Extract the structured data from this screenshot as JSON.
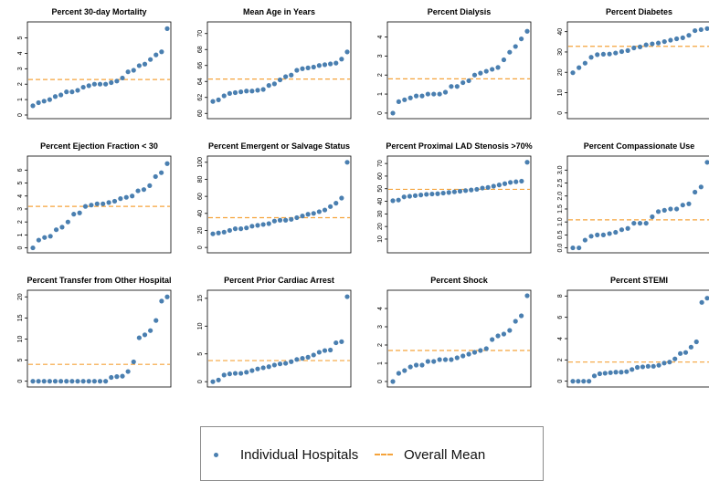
{
  "colors": {
    "points": "#4a7fb0",
    "mean_line": "#f5a33b",
    "frame": "#000000"
  },
  "legend": {
    "points_label": "Individual Hospitals",
    "mean_label": "Overall Mean"
  },
  "chart_data": [
    {
      "type": "scatter",
      "title": "Percent 30-day Mortality",
      "ylim": [
        0,
        5.8
      ],
      "ticks": [
        "0",
        "1",
        "2",
        "3",
        "4",
        "5"
      ],
      "tick_values": [
        0,
        1,
        2,
        3,
        4,
        5
      ],
      "mean": 2.3,
      "values": [
        0.6,
        0.8,
        0.9,
        1.0,
        1.2,
        1.3,
        1.5,
        1.5,
        1.6,
        1.8,
        1.9,
        2.0,
        2.0,
        2.0,
        2.1,
        2.2,
        2.4,
        2.8,
        2.9,
        3.2,
        3.3,
        3.6,
        3.9,
        4.1,
        5.6
      ]
    },
    {
      "type": "scatter",
      "title": "Mean Age in Years",
      "ylim": [
        59.8,
        71
      ],
      "ticks": [
        "60",
        "62",
        "64",
        "66",
        "68",
        "70"
      ],
      "tick_values": [
        60,
        62,
        64,
        66,
        68,
        70
      ],
      "mean": 64.3,
      "values": [
        61.5,
        61.7,
        62.2,
        62.5,
        62.6,
        62.7,
        62.8,
        62.8,
        62.9,
        63.0,
        63.5,
        63.7,
        64.2,
        64.6,
        64.8,
        65.4,
        65.6,
        65.7,
        65.8,
        66.0,
        66.1,
        66.2,
        66.3,
        66.8,
        67.7
      ]
    },
    {
      "type": "scatter",
      "title": "Percent Dialysis",
      "ylim": [
        -0.1,
        4.6
      ],
      "ticks": [
        "0",
        "1",
        "2",
        "3",
        "4"
      ],
      "tick_values": [
        0,
        1,
        2,
        3,
        4
      ],
      "mean": 1.8,
      "values": [
        0.0,
        0.6,
        0.7,
        0.8,
        0.9,
        0.9,
        1.0,
        1.0,
        1.0,
        1.1,
        1.4,
        1.4,
        1.6,
        1.7,
        2.0,
        2.1,
        2.2,
        2.3,
        2.4,
        2.8,
        3.2,
        3.5,
        3.9,
        4.3
      ]
    },
    {
      "type": "scatter",
      "title": "Percent Diabetes",
      "ylim": [
        -1,
        43
      ],
      "ticks": [
        "0",
        "10",
        "20",
        "30",
        "40"
      ],
      "tick_values": [
        0,
        10,
        20,
        30,
        40
      ],
      "mean": 32.8,
      "values": [
        19.8,
        22.3,
        24.5,
        27.4,
        28.7,
        28.9,
        29.0,
        29.5,
        30.2,
        30.7,
        32.0,
        32.5,
        33.5,
        34.0,
        34.4,
        35.1,
        35.8,
        36.5,
        37.0,
        38.2,
        40.5,
        41.0,
        41.5
      ]
    },
    {
      "type": "scatter",
      "title": "Percent Ejection Fraction < 30",
      "ylim": [
        -0.1,
        6.8
      ],
      "ticks": [
        "0",
        "1",
        "2",
        "3",
        "4",
        "5",
        "6"
      ],
      "tick_values": [
        0,
        1,
        2,
        3,
        4,
        5,
        6
      ],
      "mean": 3.2,
      "values": [
        0.0,
        0.6,
        0.8,
        0.9,
        1.4,
        1.6,
        2.0,
        2.6,
        2.7,
        3.2,
        3.3,
        3.4,
        3.4,
        3.5,
        3.6,
        3.8,
        3.9,
        4.0,
        4.4,
        4.5,
        4.8,
        5.5,
        5.8,
        6.5
      ]
    },
    {
      "type": "scatter",
      "title": "Percent Emergent or Salvage Status",
      "ylim": [
        -2,
        103
      ],
      "ticks": [
        "0",
        "20",
        "40",
        "60",
        "80",
        "100"
      ],
      "tick_values": [
        0,
        20,
        40,
        60,
        80,
        100
      ],
      "mean": 35,
      "values": [
        16,
        17,
        18,
        20,
        22,
        22,
        23,
        25,
        26,
        27,
        28,
        31,
        32,
        32,
        33,
        35,
        37,
        39,
        40,
        42,
        44,
        48,
        52,
        58,
        100
      ]
    },
    {
      "type": "scatter",
      "title": "Percent Proximal LAD Stenosis >70%",
      "ylim": [
        2,
        73
      ],
      "ticks": [
        "10",
        "20",
        "30",
        "40",
        "50",
        "60",
        "70"
      ],
      "tick_values": [
        10,
        20,
        30,
        40,
        50,
        60,
        70
      ],
      "mean": 49.5,
      "values": [
        40.5,
        41.0,
        43.5,
        44.0,
        44.5,
        45.0,
        45.5,
        45.8,
        46.0,
        46.5,
        47.0,
        47.5,
        48.0,
        48.5,
        49.0,
        49.5,
        50.5,
        51.0,
        52.0,
        53.0,
        54.0,
        55.0,
        55.5,
        56.0,
        71.0
      ]
    },
    {
      "type": "scatter",
      "title": "Percent Compassionate Use",
      "ylim": [
        -0.05,
        3.4
      ],
      "ticks": [
        "0.0",
        "0.5",
        "1.0",
        "1.5",
        "2.0",
        "2.5",
        "3.0"
      ],
      "tick_values": [
        0,
        0.5,
        1,
        1.5,
        2,
        2.5,
        3
      ],
      "mean": 1.08,
      "values": [
        0.0,
        0.0,
        0.3,
        0.45,
        0.5,
        0.5,
        0.55,
        0.6,
        0.7,
        0.75,
        0.95,
        0.95,
        0.95,
        1.2,
        1.4,
        1.45,
        1.5,
        1.5,
        1.65,
        1.7,
        2.15,
        2.35,
        3.3
      ]
    },
    {
      "type": "scatter",
      "title": "Percent Transfer from Other Hospital",
      "ylim": [
        -0.5,
        20.7
      ],
      "ticks": [
        "0",
        "5",
        "10",
        "15",
        "20"
      ],
      "tick_values": [
        0,
        5,
        10,
        15,
        20
      ],
      "mean": 4.0,
      "values": [
        0,
        0,
        0,
        0,
        0,
        0,
        0,
        0,
        0,
        0,
        0,
        0,
        0,
        0,
        0.9,
        1.1,
        1.2,
        2.3,
        4.6,
        10.3,
        11.0,
        12.0,
        14.4,
        19.0,
        20.0
      ]
    },
    {
      "type": "scatter",
      "title": "Percent Prior Cardiac Arrest",
      "ylim": [
        -0.3,
        15.8
      ],
      "ticks": [
        "0",
        "5",
        "10",
        "15"
      ],
      "tick_values": [
        0,
        5,
        10,
        15
      ],
      "mean": 3.8,
      "values": [
        0.0,
        0.3,
        1.2,
        1.4,
        1.5,
        1.5,
        1.7,
        2.0,
        2.3,
        2.5,
        2.7,
        3.0,
        3.2,
        3.3,
        3.6,
        4.0,
        4.2,
        4.4,
        4.8,
        5.3,
        5.6,
        5.7,
        7.0,
        7.2,
        15.3
      ]
    },
    {
      "type": "scatter",
      "title": "Percent Shock",
      "ylim": [
        -0.1,
        4.8
      ],
      "ticks": [
        "0",
        "1",
        "2",
        "3",
        "4"
      ],
      "tick_values": [
        0,
        1,
        2,
        3,
        4
      ],
      "mean": 1.7,
      "values": [
        0.0,
        0.45,
        0.6,
        0.8,
        0.9,
        0.9,
        1.1,
        1.1,
        1.2,
        1.2,
        1.2,
        1.3,
        1.4,
        1.5,
        1.6,
        1.7,
        1.8,
        2.3,
        2.5,
        2.6,
        2.8,
        3.3,
        3.6,
        4.7
      ]
    },
    {
      "type": "scatter",
      "title": "Percent STEMI",
      "ylim": [
        -0.2,
        8.2
      ],
      "ticks": [
        "0",
        "2",
        "4",
        "6",
        "8"
      ],
      "tick_values": [
        0,
        2,
        4,
        6,
        8
      ],
      "mean": 1.8,
      "values": [
        0.0,
        0.0,
        0.0,
        0.0,
        0.5,
        0.7,
        0.75,
        0.8,
        0.85,
        0.85,
        0.9,
        1.1,
        1.3,
        1.35,
        1.4,
        1.4,
        1.5,
        1.7,
        1.8,
        2.1,
        2.6,
        2.7,
        3.2,
        3.7,
        7.4,
        7.8
      ]
    }
  ]
}
